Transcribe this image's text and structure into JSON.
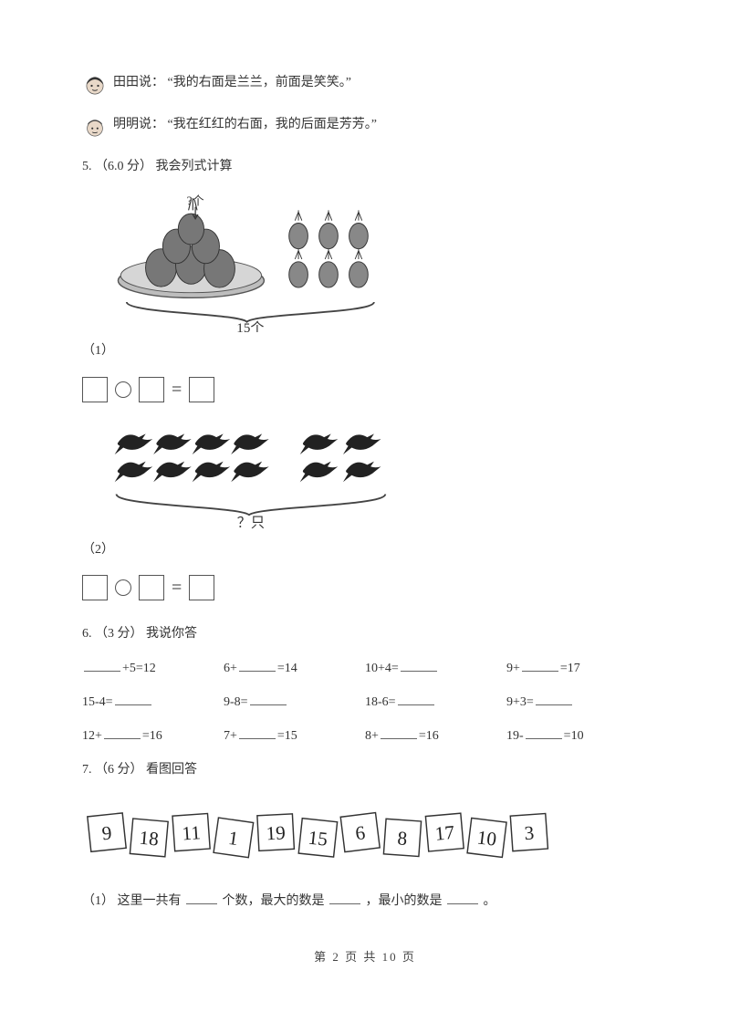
{
  "speakers": {
    "tiantian": {
      "name_label": "田田说：",
      "quote": "“我的右面是兰兰，前面是笑笑。”"
    },
    "mingming": {
      "name_label": "明明说：",
      "quote": "“我在红红的右面，我的后面是芳芳。”"
    }
  },
  "q5": {
    "number": "5.",
    "points": "（6.0 分）",
    "title": "我会列式计算",
    "sub1": {
      "index": "（1）",
      "total_label": "15个",
      "qmark": "?个"
    },
    "sub2": {
      "index": "（2）",
      "qlabel": "？只"
    }
  },
  "q6": {
    "number": "6.",
    "points": "（3 分）",
    "title": "我说你答",
    "rows": [
      [
        {
          "pre": "",
          "blank": true,
          "post": "+5=12"
        },
        {
          "pre": "6+",
          "blank": true,
          "post": "=14"
        },
        {
          "pre": "10+4=",
          "blank": true,
          "post": ""
        },
        {
          "pre": "9+",
          "blank": true,
          "post": "=17"
        }
      ],
      [
        {
          "pre": "15-4=",
          "blank": true,
          "post": ""
        },
        {
          "pre": "9-8=",
          "blank": true,
          "post": ""
        },
        {
          "pre": "18-6=",
          "blank": true,
          "post": ""
        },
        {
          "pre": "9+3=",
          "blank": true,
          "post": ""
        }
      ],
      [
        {
          "pre": "12+",
          "blank": true,
          "post": "=16"
        },
        {
          "pre": "7+",
          "blank": true,
          "post": "=15"
        },
        {
          "pre": "8+",
          "blank": true,
          "post": "=16"
        },
        {
          "pre": "19-",
          "blank": true,
          "post": "=10"
        }
      ]
    ]
  },
  "q7": {
    "number": "7.",
    "points": "（6 分）",
    "title": "看图回答",
    "numbers": [
      "9",
      "18",
      "11",
      "1",
      "19",
      "15",
      "6",
      "8",
      "17",
      "10",
      "3"
    ],
    "sub1": {
      "index": "（1）",
      "seg1": "这里一共有",
      "seg2": "个数，最大的数是",
      "seg3": "，最小的数是",
      "seg4": "。"
    }
  },
  "footer": {
    "text": "第 2 页 共 10 页"
  },
  "colors": {
    "ink": "#333333",
    "box_stroke": "#555555",
    "brace": "#444444",
    "bird_fill": "#222222",
    "pineapple_fill": "#888888",
    "pineapple_stroke": "#333333",
    "plate_fill": "#bdbdbd",
    "plate_stroke": "#555555"
  }
}
